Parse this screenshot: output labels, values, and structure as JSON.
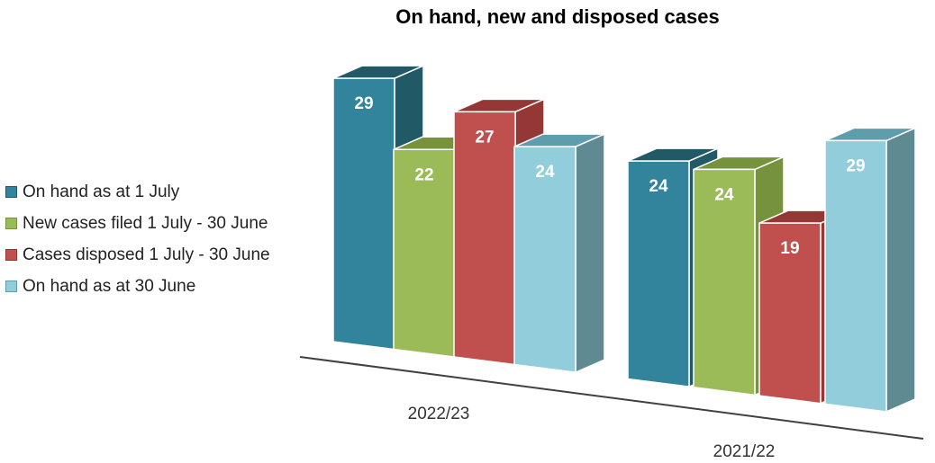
{
  "chart_data": {
    "type": "bar",
    "title": "On hand, new and disposed cases",
    "categories": [
      "2022/23",
      "2021/22"
    ],
    "series": [
      {
        "name": "On hand as at 1 July",
        "values": [
          29,
          24
        ],
        "color": "#31849B",
        "top": "#215967",
        "side": "#215967"
      },
      {
        "name": "New cases filed 1 July - 30 June",
        "values": [
          22,
          24
        ],
        "color": "#9BBB59",
        "top": "#76923C",
        "side": "#76923C"
      },
      {
        "name": "Cases disposed 1 July - 30 June",
        "values": [
          27,
          19
        ],
        "color": "#C0504D",
        "top": "#953734",
        "side": "#953734"
      },
      {
        "name": "On hand as at 30 June",
        "values": [
          24,
          29
        ],
        "color": "#92CDDC",
        "top": "#5F9DAE",
        "side": "#5F8A92"
      }
    ],
    "legend_position": "left",
    "grid": false
  }
}
